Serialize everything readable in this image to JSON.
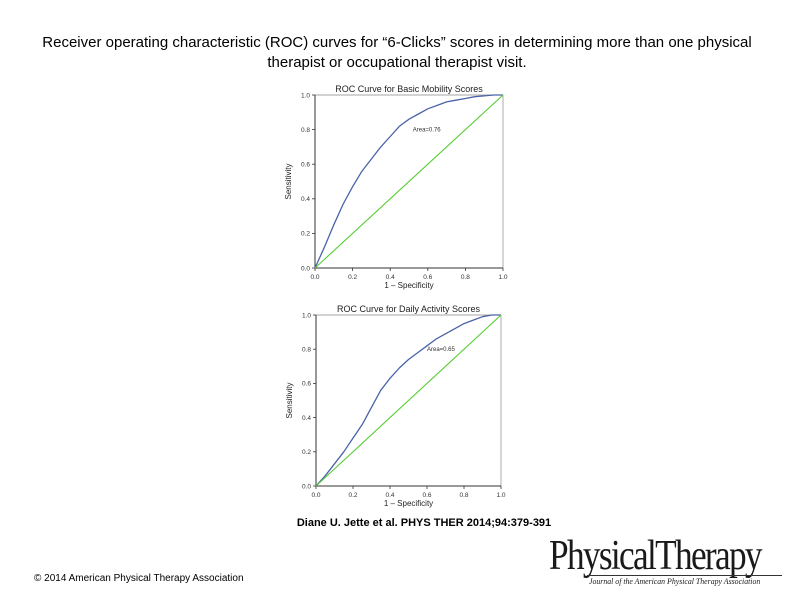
{
  "slide": {
    "title": "Receiver operating characteristic (ROC) curves for “6-Clicks” scores in determining more than one physical therapist or occupational therapist visit.",
    "citation": "Diane U. Jette et al. PHYS THER 2014;94:379-391",
    "copyright": "© 2014 American Physical Therapy Association",
    "logo": {
      "word": "PhysicalTherapy",
      "subtitle": "Journal of the American Physical Therapy Association"
    }
  },
  "colors": {
    "curve": "#4a63a8",
    "reference": "#55cc33",
    "axis": "#333333"
  },
  "chart_data": [
    {
      "type": "line",
      "title": "ROC Curve for Basic Mobility Scores",
      "xlabel": "1 – Specificity",
      "ylabel": "Sensitivity",
      "xlim": [
        0,
        1
      ],
      "ylim": [
        0,
        1
      ],
      "xticks": [
        "0.0",
        "0.2",
        "0.4",
        "0.6",
        "0.8",
        "1.0"
      ],
      "yticks": [
        "0.0",
        "0.2",
        "0.4",
        "0.6",
        "0.8",
        "1.0"
      ],
      "annotation": {
        "text": "Area=0.76",
        "x": 0.52,
        "y": 0.79
      },
      "series": [
        {
          "role": "roc",
          "x": [
            0,
            0.05,
            0.1,
            0.15,
            0.2,
            0.25,
            0.3,
            0.35,
            0.4,
            0.45,
            0.5,
            0.55,
            0.6,
            0.65,
            0.7,
            0.75,
            0.8,
            0.85,
            0.9,
            0.95,
            1.0
          ],
          "y": [
            0,
            0.12,
            0.25,
            0.37,
            0.47,
            0.56,
            0.63,
            0.7,
            0.76,
            0.82,
            0.86,
            0.89,
            0.92,
            0.94,
            0.96,
            0.97,
            0.98,
            0.99,
            0.995,
            1.0,
            1.0
          ]
        },
        {
          "role": "reference",
          "x": [
            0,
            1
          ],
          "y": [
            0,
            1
          ]
        }
      ]
    },
    {
      "type": "line",
      "title": "ROC Curve for Daily Activity Scores",
      "xlabel": "1 – Specificity",
      "ylabel": "Sensitivity",
      "xlim": [
        0,
        1
      ],
      "ylim": [
        0,
        1
      ],
      "xticks": [
        "0.0",
        "0.2",
        "0.4",
        "0.6",
        "0.8",
        "1.0"
      ],
      "yticks": [
        "0.0",
        "0.2",
        "0.4",
        "0.6",
        "0.8",
        "1.0"
      ],
      "annotation": {
        "text": "Area=0.65",
        "x": 0.6,
        "y": 0.79
      },
      "series": [
        {
          "role": "roc",
          "x": [
            0,
            0.05,
            0.1,
            0.15,
            0.2,
            0.25,
            0.3,
            0.35,
            0.4,
            0.45,
            0.5,
            0.55,
            0.6,
            0.65,
            0.7,
            0.75,
            0.8,
            0.85,
            0.9,
            0.95,
            1.0
          ],
          "y": [
            0,
            0.06,
            0.13,
            0.2,
            0.28,
            0.36,
            0.46,
            0.56,
            0.63,
            0.69,
            0.74,
            0.78,
            0.82,
            0.86,
            0.89,
            0.92,
            0.95,
            0.97,
            0.99,
            1.0,
            1.0
          ]
        },
        {
          "role": "reference",
          "x": [
            0,
            1
          ],
          "y": [
            0,
            1
          ]
        }
      ]
    }
  ]
}
